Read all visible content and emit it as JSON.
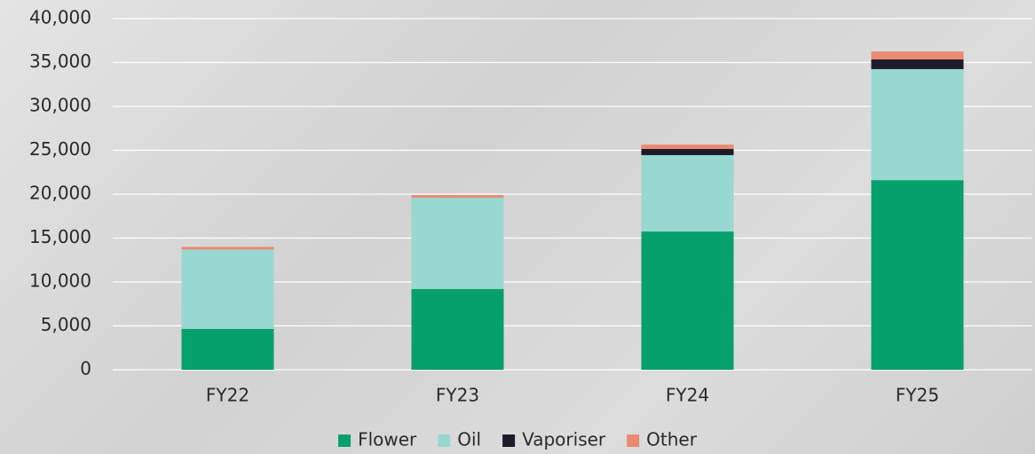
{
  "chart_data": {
    "type": "stacked_bar",
    "categories": [
      "FY22",
      "FY23",
      "FY24",
      "FY25"
    ],
    "series": [
      {
        "name": "Flower",
        "color": "#05a06b",
        "values": [
          4650,
          9200,
          15750,
          21600
        ]
      },
      {
        "name": "Oil",
        "color": "#98d8d0",
        "values": [
          9050,
          10400,
          8700,
          12650
        ]
      },
      {
        "name": "Vaporiser",
        "color": "#1e1b2b",
        "values": [
          0,
          0,
          700,
          1100
        ]
      },
      {
        "name": "Other",
        "color": "#e98b72",
        "values": [
          300,
          300,
          500,
          900
        ]
      }
    ],
    "ylim": [
      0,
      40000
    ],
    "yticks": [
      0,
      {
        "value": 5000,
        "label": "5,000"
      },
      {
        "value": 10000,
        "label": "10,000"
      },
      {
        "value": 15000,
        "label": "15,000"
      },
      {
        "value": 20000,
        "label": "20,000"
      },
      {
        "value": 25000,
        "label": "25,000"
      },
      {
        "value": 30000,
        "label": "30,000"
      },
      {
        "value": 35000,
        "label": "35,000"
      },
      {
        "value": 40000,
        "label": "40,000"
      }
    ],
    "grid": true,
    "legend": "bottom"
  }
}
